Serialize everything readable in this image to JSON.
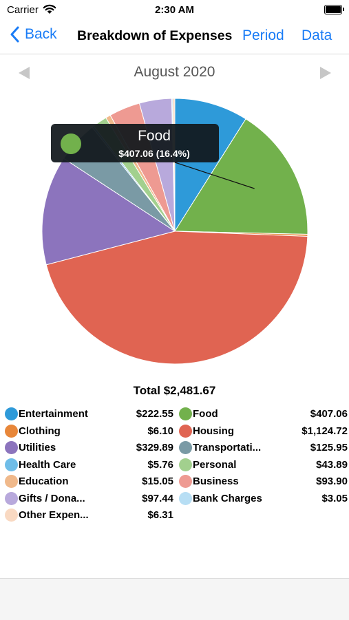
{
  "status_bar": {
    "carrier": "Carrier",
    "time": "2:30 AM"
  },
  "nav": {
    "back_label": "Back",
    "title": "Breakdown of Expenses",
    "period_label": "Period",
    "data_label": "Data"
  },
  "period": {
    "label": "August 2020"
  },
  "tooltip": {
    "category": "Food",
    "value": "$407.06 (16.4%)",
    "color": "#72b14c"
  },
  "total": {
    "label": "Total $2,481.67"
  },
  "chart_data": {
    "type": "pie",
    "title": "",
    "total": 2481.67,
    "slices": [
      {
        "name": "Entertainment",
        "value": 222.55,
        "color": "#2e9ad9"
      },
      {
        "name": "Food",
        "value": 407.06,
        "color": "#72b14c"
      },
      {
        "name": "Clothing",
        "value": 6.1,
        "color": "#e8873a"
      },
      {
        "name": "Housing",
        "value": 1124.72,
        "color": "#e06452"
      },
      {
        "name": "Utilities",
        "value": 329.89,
        "color": "#8c74bd"
      },
      {
        "name": "Transportati...",
        "value": 125.95,
        "color": "#7a9aa5"
      },
      {
        "name": "Health Care",
        "value": 5.76,
        "color": "#6fbde8"
      },
      {
        "name": "Personal",
        "value": 43.89,
        "color": "#a2d08e"
      },
      {
        "name": "Education",
        "value": 15.05,
        "color": "#f0b98b"
      },
      {
        "name": "Business",
        "value": 93.9,
        "color": "#ee9a92"
      },
      {
        "name": "Gifts / Dona...",
        "value": 97.44,
        "color": "#b8a9dc"
      },
      {
        "name": "Bank Charges",
        "value": 3.05,
        "color": "#b7def4"
      },
      {
        "name": "Other Expen...",
        "value": 6.31,
        "color": "#f9d9c2"
      }
    ]
  },
  "legend": [
    {
      "name": "Entertainment",
      "amount": "$222.55",
      "color": "#2e9ad9"
    },
    {
      "name": "Food",
      "amount": "$407.06",
      "color": "#72b14c"
    },
    {
      "name": "Clothing",
      "amount": "$6.10",
      "color": "#e8873a"
    },
    {
      "name": "Housing",
      "amount": "$1,124.72",
      "color": "#e06452"
    },
    {
      "name": "Utilities",
      "amount": "$329.89",
      "color": "#8c74bd"
    },
    {
      "name": "Transportati...",
      "amount": "$125.95",
      "color": "#7a9aa5"
    },
    {
      "name": "Health Care",
      "amount": "$5.76",
      "color": "#6fbde8"
    },
    {
      "name": "Personal",
      "amount": "$43.89",
      "color": "#a2d08e"
    },
    {
      "name": "Education",
      "amount": "$15.05",
      "color": "#f0b98b"
    },
    {
      "name": "Business",
      "amount": "$93.90",
      "color": "#ee9a92"
    },
    {
      "name": "Gifts / Dona...",
      "amount": "$97.44",
      "color": "#b8a9dc"
    },
    {
      "name": "Bank Charges",
      "amount": "$3.05",
      "color": "#b7def4"
    },
    {
      "name": "Other Expen...",
      "amount": "$6.31",
      "color": "#f9d9c2"
    }
  ]
}
